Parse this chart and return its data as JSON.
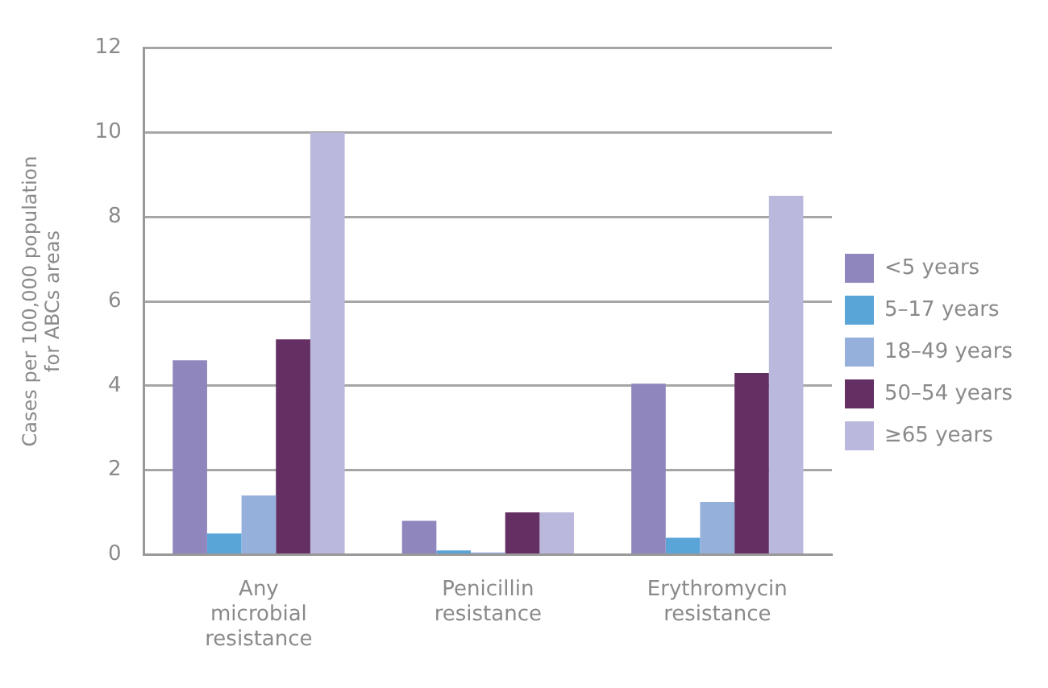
{
  "chart_data": {
    "type": "bar",
    "ylabel": "Cases per 100,000 population for ABCs areas",
    "categories": [
      "Any microbial resistance",
      "Penicillin resistance",
      "Erythromycin resistance"
    ],
    "series": [
      {
        "name": "<5 years",
        "color": "#8e86bd",
        "values": [
          4.6,
          0.8,
          4.05
        ]
      },
      {
        "name": "5–17 years",
        "color": "#5aa5d8",
        "values": [
          0.5,
          0.1,
          0.4
        ]
      },
      {
        "name": "18–49 years",
        "color": "#96b0dc",
        "values": [
          1.4,
          0.05,
          1.25
        ]
      },
      {
        "name": "50–54 years",
        "color": "#642f62",
        "values": [
          5.1,
          1.0,
          4.3
        ]
      },
      {
        "name": "≥65 years",
        "color": "#bab8dc",
        "values": [
          10.0,
          1.0,
          8.5
        ]
      }
    ],
    "ylim": [
      0,
      12
    ],
    "yticks": [
      0,
      2,
      4,
      6,
      8,
      10,
      12
    ],
    "grid": "y",
    "legend": "right"
  }
}
